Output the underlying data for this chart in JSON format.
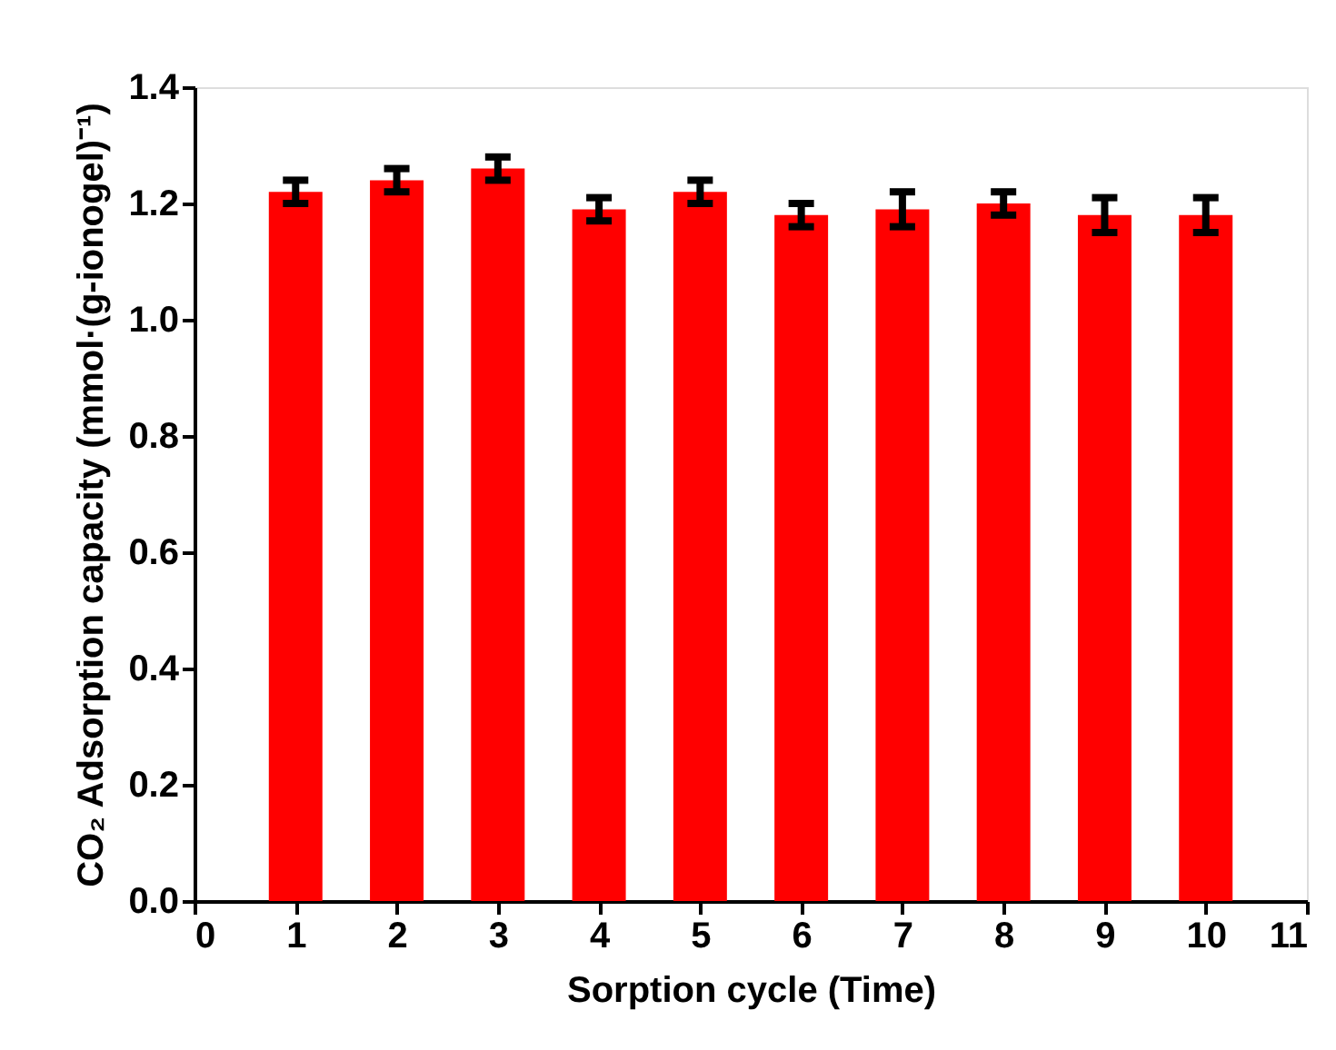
{
  "chart_data": {
    "type": "bar",
    "xlabel": "Sorption cycle (Time)",
    "ylabel": "CO₂ Adsorption capacity (mmol·(g-ionogel)⁻¹)",
    "x": [
      1,
      2,
      3,
      4,
      5,
      6,
      7,
      8,
      9,
      10
    ],
    "values": [
      1.22,
      1.24,
      1.26,
      1.19,
      1.22,
      1.18,
      1.19,
      1.2,
      1.18,
      1.18
    ],
    "errors": [
      0.02,
      0.02,
      0.02,
      0.02,
      0.02,
      0.02,
      0.03,
      0.02,
      0.03,
      0.03
    ],
    "color": "#ff0000",
    "xlim": [
      0,
      11
    ],
    "xticks": [
      0,
      1,
      2,
      3,
      4,
      5,
      6,
      7,
      8,
      9,
      10,
      11
    ],
    "ylim": [
      0,
      1.4
    ],
    "yticks": [
      {
        "value": 0,
        "label": "0.0"
      },
      0.2,
      0.4,
      0.6,
      0.8,
      {
        "value": 1,
        "label": "1.0"
      },
      1.2,
      1.4
    ],
    "grid": false
  }
}
